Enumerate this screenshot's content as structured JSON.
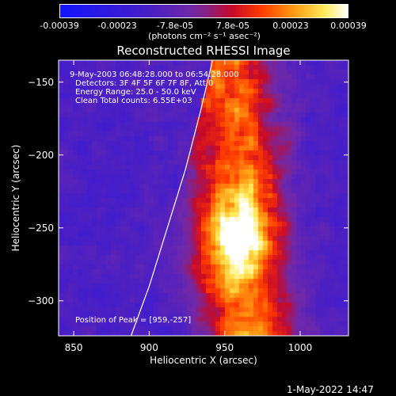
{
  "colorbar": {
    "tick_labels": [
      "-0.00039",
      "-0.00023",
      "-7.8e-05",
      "7.8e-05",
      "0.00023",
      "0.00039"
    ],
    "unit_label": "(photons cm⁻² s⁻¹ asec⁻²)",
    "range": [
      -0.00039,
      0.00039
    ]
  },
  "chart_data": {
    "type": "heatmap",
    "title": "Reconstructed RHESSI Image",
    "xlabel": "Heliocentric X (arcsec)",
    "ylabel": "Heliocentric Y (arcsec)",
    "xlim": [
      840,
      1032
    ],
    "ylim": [
      -324,
      -135
    ],
    "x_ticks": [
      850,
      900,
      950,
      1000
    ],
    "y_ticks": [
      -150,
      -200,
      -250,
      -300
    ],
    "annotations": [
      "9-May-2003 06:48:28.000 to 06:54:28.000",
      "Detectors: 3F 4F 5F 6F 7F 8F, Att 0",
      "Energy Range: 25.0 - 50.0 keV",
      "Clean     Total counts: 6.55E+03"
    ],
    "peak_label": "Position of Peak = [959,-257]",
    "peak": [
      959,
      -257
    ],
    "limb_curve": [
      [
        888,
        -324
      ],
      [
        900,
        -290
      ],
      [
        912,
        -250
      ],
      [
        924,
        -210
      ],
      [
        934,
        -170
      ],
      [
        942,
        -135
      ]
    ],
    "source_ridge": [
      [
        948,
        -135
      ],
      [
        955,
        -180
      ],
      [
        960,
        -220
      ],
      [
        959,
        -257
      ],
      [
        960,
        -290
      ],
      [
        970,
        -324
      ]
    ]
  },
  "timestamp": "1-May-2022 14:47"
}
